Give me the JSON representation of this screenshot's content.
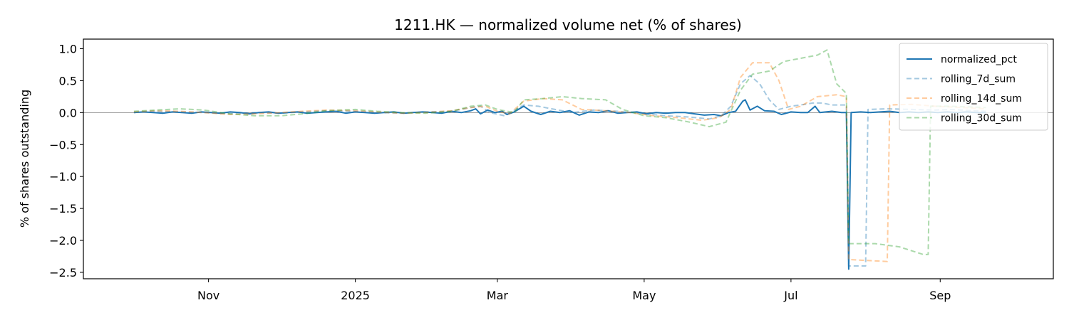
{
  "chart_data": {
    "type": "line",
    "title": "1211.HK — normalized volume net (% of shares)",
    "xlabel": "",
    "ylabel": "% of shares outstanding",
    "xlim": [
      "2024-09-10",
      "2025-10-18"
    ],
    "ylim": [
      -2.6,
      1.15
    ],
    "x_ticks": [
      {
        "date": "2024-11-01",
        "label": "Nov"
      },
      {
        "date": "2025-01-01",
        "label": "2025"
      },
      {
        "date": "2025-03-01",
        "label": "Mar"
      },
      {
        "date": "2025-05-01",
        "label": "May"
      },
      {
        "date": "2025-07-01",
        "label": "Jul"
      },
      {
        "date": "2025-09-01",
        "label": "Sep"
      }
    ],
    "y_ticks": [
      {
        "value": 1.0,
        "label": "1.0"
      },
      {
        "value": 0.5,
        "label": "0.5"
      },
      {
        "value": 0.0,
        "label": "0.0"
      },
      {
        "value": -0.5,
        "label": "−0.5"
      },
      {
        "value": -1.0,
        "label": "−1.0"
      },
      {
        "value": -1.5,
        "label": "−1.5"
      },
      {
        "value": -2.0,
        "label": "−2.0"
      },
      {
        "value": -2.5,
        "label": "−2.5"
      }
    ],
    "zero_line": true,
    "grid": false,
    "legend_position": "top-right",
    "series": [
      {
        "name": "normalized_pct",
        "color": "#1f77b4",
        "style": "solid",
        "opacity": 1.0,
        "points": [
          [
            "2024-10-01",
            0.0
          ],
          [
            "2024-10-05",
            0.01
          ],
          [
            "2024-10-09",
            0.0
          ],
          [
            "2024-10-13",
            -0.01
          ],
          [
            "2024-10-17",
            0.01
          ],
          [
            "2024-10-21",
            0.0
          ],
          [
            "2024-10-25",
            -0.01
          ],
          [
            "2024-10-29",
            0.01
          ],
          [
            "2024-11-02",
            0.0
          ],
          [
            "2024-11-06",
            -0.01
          ],
          [
            "2024-11-10",
            0.01
          ],
          [
            "2024-11-14",
            0.0
          ],
          [
            "2024-11-18",
            -0.02
          ],
          [
            "2024-11-22",
            0.0
          ],
          [
            "2024-11-26",
            0.01
          ],
          [
            "2024-11-30",
            -0.01
          ],
          [
            "2024-12-04",
            0.0
          ],
          [
            "2024-12-08",
            0.01
          ],
          [
            "2024-12-12",
            -0.01
          ],
          [
            "2024-12-16",
            0.0
          ],
          [
            "2024-12-20",
            0.01
          ],
          [
            "2024-12-24",
            0.02
          ],
          [
            "2024-12-28",
            -0.01
          ],
          [
            "2025-01-01",
            0.01
          ],
          [
            "2025-01-05",
            0.0
          ],
          [
            "2025-01-09",
            -0.01
          ],
          [
            "2025-01-13",
            0.0
          ],
          [
            "2025-01-17",
            0.01
          ],
          [
            "2025-01-21",
            -0.01
          ],
          [
            "2025-01-25",
            0.0
          ],
          [
            "2025-01-29",
            0.01
          ],
          [
            "2025-02-02",
            0.0
          ],
          [
            "2025-02-06",
            -0.01
          ],
          [
            "2025-02-10",
            0.02
          ],
          [
            "2025-02-14",
            0.0
          ],
          [
            "2025-02-18",
            0.03
          ],
          [
            "2025-02-20",
            0.06
          ],
          [
            "2025-02-22",
            -0.02
          ],
          [
            "2025-02-25",
            0.04
          ],
          [
            "2025-02-28",
            0.0
          ],
          [
            "2025-03-03",
            0.02
          ],
          [
            "2025-03-05",
            -0.03
          ],
          [
            "2025-03-08",
            0.01
          ],
          [
            "2025-03-12",
            0.1
          ],
          [
            "2025-03-15",
            0.02
          ],
          [
            "2025-03-19",
            -0.03
          ],
          [
            "2025-03-23",
            0.02
          ],
          [
            "2025-03-27",
            0.0
          ],
          [
            "2025-03-31",
            0.03
          ],
          [
            "2025-04-04",
            -0.04
          ],
          [
            "2025-04-08",
            0.01
          ],
          [
            "2025-04-12",
            0.0
          ],
          [
            "2025-04-16",
            0.03
          ],
          [
            "2025-04-20",
            -0.01
          ],
          [
            "2025-04-24",
            0.0
          ],
          [
            "2025-04-28",
            0.01
          ],
          [
            "2025-05-02",
            -0.02
          ],
          [
            "2025-05-06",
            0.0
          ],
          [
            "2025-05-10",
            -0.01
          ],
          [
            "2025-05-14",
            0.0
          ],
          [
            "2025-05-18",
            0.0
          ],
          [
            "2025-05-22",
            -0.02
          ],
          [
            "2025-05-26",
            -0.04
          ],
          [
            "2025-05-30",
            -0.03
          ],
          [
            "2025-06-02",
            -0.05
          ],
          [
            "2025-06-05",
            0.0
          ],
          [
            "2025-06-08",
            0.02
          ],
          [
            "2025-06-11",
            0.18
          ],
          [
            "2025-06-12",
            0.2
          ],
          [
            "2025-06-14",
            0.04
          ],
          [
            "2025-06-17",
            0.1
          ],
          [
            "2025-06-20",
            0.03
          ],
          [
            "2025-06-24",
            0.02
          ],
          [
            "2025-06-27",
            -0.03
          ],
          [
            "2025-07-01",
            0.01
          ],
          [
            "2025-07-05",
            0.0
          ],
          [
            "2025-07-08",
            0.0
          ],
          [
            "2025-07-11",
            0.1
          ],
          [
            "2025-07-13",
            0.0
          ],
          [
            "2025-07-18",
            0.02
          ],
          [
            "2025-07-22",
            0.0
          ],
          [
            "2025-07-24",
            0.0
          ],
          [
            "2025-07-25",
            -2.45
          ],
          [
            "2025-07-26",
            0.0
          ],
          [
            "2025-07-30",
            0.01
          ],
          [
            "2025-08-03",
            0.0
          ],
          [
            "2025-08-07",
            0.01
          ],
          [
            "2025-08-11",
            0.02
          ],
          [
            "2025-08-15",
            0.0
          ],
          [
            "2025-08-19",
            0.01
          ],
          [
            "2025-08-23",
            0.0
          ],
          [
            "2025-08-27",
            0.01
          ],
          [
            "2025-08-31",
            0.0
          ],
          [
            "2025-09-04",
            0.01
          ],
          [
            "2025-09-08",
            0.0
          ],
          [
            "2025-09-12",
            0.01
          ],
          [
            "2025-09-16",
            0.0
          ],
          [
            "2025-09-20",
            0.0
          ]
        ]
      },
      {
        "name": "rolling_7d_sum",
        "color": "#1f77b4",
        "style": "dashed",
        "opacity": 0.4,
        "points": [
          [
            "2024-10-01",
            0.0
          ],
          [
            "2024-10-10",
            0.02
          ],
          [
            "2024-10-20",
            0.01
          ],
          [
            "2024-10-30",
            0.0
          ],
          [
            "2024-11-10",
            -0.02
          ],
          [
            "2024-11-20",
            0.0
          ],
          [
            "2024-12-01",
            -0.01
          ],
          [
            "2024-12-10",
            0.01
          ],
          [
            "2024-12-20",
            0.03
          ],
          [
            "2025-01-01",
            0.02
          ],
          [
            "2025-01-10",
            0.0
          ],
          [
            "2025-01-20",
            -0.01
          ],
          [
            "2025-01-30",
            0.01
          ],
          [
            "2025-02-10",
            0.02
          ],
          [
            "2025-02-18",
            0.08
          ],
          [
            "2025-02-22",
            0.1
          ],
          [
            "2025-02-26",
            0.0
          ],
          [
            "2025-03-04",
            -0.05
          ],
          [
            "2025-03-12",
            0.12
          ],
          [
            "2025-03-18",
            0.1
          ],
          [
            "2025-03-25",
            0.05
          ],
          [
            "2025-04-01",
            0.0
          ],
          [
            "2025-04-10",
            0.04
          ],
          [
            "2025-04-20",
            0.02
          ],
          [
            "2025-05-01",
            -0.02
          ],
          [
            "2025-05-10",
            -0.05
          ],
          [
            "2025-05-20",
            -0.07
          ],
          [
            "2025-05-28",
            -0.1
          ],
          [
            "2025-06-02",
            -0.05
          ],
          [
            "2025-06-06",
            0.1
          ],
          [
            "2025-06-10",
            0.45
          ],
          [
            "2025-06-14",
            0.58
          ],
          [
            "2025-06-18",
            0.45
          ],
          [
            "2025-06-22",
            0.2
          ],
          [
            "2025-06-26",
            0.05
          ],
          [
            "2025-07-01",
            0.1
          ],
          [
            "2025-07-05",
            0.12
          ],
          [
            "2025-07-10",
            0.15
          ],
          [
            "2025-07-14",
            0.15
          ],
          [
            "2025-07-18",
            0.12
          ],
          [
            "2025-07-24",
            0.12
          ],
          [
            "2025-07-25",
            -2.4
          ],
          [
            "2025-08-01",
            -2.4
          ],
          [
            "2025-08-02",
            0.05
          ],
          [
            "2025-08-10",
            0.06
          ],
          [
            "2025-08-20",
            0.05
          ],
          [
            "2025-08-30",
            0.04
          ],
          [
            "2025-09-05",
            0.05
          ],
          [
            "2025-09-15",
            0.03
          ],
          [
            "2025-09-20",
            0.02
          ]
        ]
      },
      {
        "name": "rolling_14d_sum",
        "color": "#ff7f0e",
        "style": "dashed",
        "opacity": 0.4,
        "points": [
          [
            "2024-10-01",
            0.01
          ],
          [
            "2024-10-10",
            0.03
          ],
          [
            "2024-10-20",
            0.02
          ],
          [
            "2024-10-30",
            0.0
          ],
          [
            "2024-11-10",
            -0.03
          ],
          [
            "2024-11-20",
            -0.02
          ],
          [
            "2024-12-01",
            0.0
          ],
          [
            "2024-12-10",
            0.02
          ],
          [
            "2024-12-20",
            0.04
          ],
          [
            "2025-01-01",
            0.03
          ],
          [
            "2025-01-10",
            0.01
          ],
          [
            "2025-01-20",
            -0.01
          ],
          [
            "2025-01-30",
            0.0
          ],
          [
            "2025-02-10",
            0.03
          ],
          [
            "2025-02-18",
            0.08
          ],
          [
            "2025-02-24",
            0.1
          ],
          [
            "2025-03-01",
            0.02
          ],
          [
            "2025-03-06",
            -0.02
          ],
          [
            "2025-03-12",
            0.18
          ],
          [
            "2025-03-20",
            0.22
          ],
          [
            "2025-03-28",
            0.2
          ],
          [
            "2025-04-05",
            0.05
          ],
          [
            "2025-04-15",
            0.03
          ],
          [
            "2025-04-25",
            0.0
          ],
          [
            "2025-05-05",
            -0.05
          ],
          [
            "2025-05-15",
            -0.08
          ],
          [
            "2025-05-25",
            -0.12
          ],
          [
            "2025-06-01",
            -0.08
          ],
          [
            "2025-06-06",
            0.05
          ],
          [
            "2025-06-10",
            0.55
          ],
          [
            "2025-06-15",
            0.78
          ],
          [
            "2025-06-22",
            0.78
          ],
          [
            "2025-06-26",
            0.5
          ],
          [
            "2025-06-30",
            0.05
          ],
          [
            "2025-07-05",
            0.1
          ],
          [
            "2025-07-12",
            0.25
          ],
          [
            "2025-07-20",
            0.28
          ],
          [
            "2025-07-24",
            0.25
          ],
          [
            "2025-07-25",
            -2.3
          ],
          [
            "2025-08-10",
            -2.33
          ],
          [
            "2025-08-11",
            0.12
          ],
          [
            "2025-08-20",
            0.13
          ],
          [
            "2025-08-30",
            0.1
          ],
          [
            "2025-09-10",
            0.08
          ],
          [
            "2025-09-20",
            0.06
          ]
        ]
      },
      {
        "name": "rolling_30d_sum",
        "color": "#2ca02c",
        "style": "dashed",
        "opacity": 0.4,
        "points": [
          [
            "2024-10-01",
            0.02
          ],
          [
            "2024-10-10",
            0.04
          ],
          [
            "2024-10-20",
            0.06
          ],
          [
            "2024-10-30",
            0.04
          ],
          [
            "2024-11-10",
            -0.02
          ],
          [
            "2024-11-20",
            -0.05
          ],
          [
            "2024-12-01",
            -0.05
          ],
          [
            "2024-12-10",
            -0.02
          ],
          [
            "2024-12-20",
            0.03
          ],
          [
            "2025-01-01",
            0.05
          ],
          [
            "2025-01-10",
            0.02
          ],
          [
            "2025-01-20",
            0.0
          ],
          [
            "2025-01-30",
            -0.01
          ],
          [
            "2025-02-10",
            0.02
          ],
          [
            "2025-02-18",
            0.1
          ],
          [
            "2025-02-24",
            0.12
          ],
          [
            "2025-03-01",
            0.05
          ],
          [
            "2025-03-08",
            0.0
          ],
          [
            "2025-03-12",
            0.2
          ],
          [
            "2025-03-20",
            0.22
          ],
          [
            "2025-03-28",
            0.25
          ],
          [
            "2025-04-05",
            0.22
          ],
          [
            "2025-04-15",
            0.2
          ],
          [
            "2025-04-22",
            0.05
          ],
          [
            "2025-05-01",
            -0.05
          ],
          [
            "2025-05-10",
            -0.08
          ],
          [
            "2025-05-20",
            -0.15
          ],
          [
            "2025-05-28",
            -0.22
          ],
          [
            "2025-06-04",
            -0.15
          ],
          [
            "2025-06-10",
            0.35
          ],
          [
            "2025-06-15",
            0.6
          ],
          [
            "2025-06-22",
            0.65
          ],
          [
            "2025-06-28",
            0.8
          ],
          [
            "2025-07-05",
            0.85
          ],
          [
            "2025-07-12",
            0.9
          ],
          [
            "2025-07-16",
            0.98
          ],
          [
            "2025-07-20",
            0.45
          ],
          [
            "2025-07-24",
            0.3
          ],
          [
            "2025-07-25",
            -2.05
          ],
          [
            "2025-08-05",
            -2.05
          ],
          [
            "2025-08-15",
            -2.1
          ],
          [
            "2025-08-25",
            -2.22
          ],
          [
            "2025-08-27",
            -2.22
          ],
          [
            "2025-08-28",
            0.1
          ],
          [
            "2025-09-05",
            0.1
          ],
          [
            "2025-09-20",
            0.08
          ]
        ]
      }
    ]
  }
}
